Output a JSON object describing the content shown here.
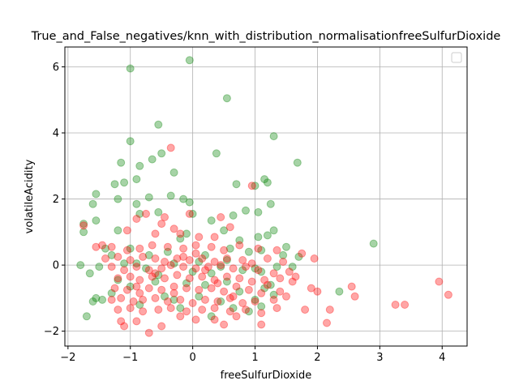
{
  "chart_data": {
    "type": "scatter",
    "title": "True_and_False_negatives/knn_with_distribution_normalisationfreeSulfurDioxide",
    "xlabel": "freeSulfurDioxide",
    "ylabel": "volatileAcidity",
    "xlim": [
      -2.05,
      4.4
    ],
    "ylim": [
      -2.45,
      6.6
    ],
    "xticks": [
      -2,
      -1,
      0,
      1,
      2,
      3,
      4
    ],
    "yticks": [
      -2,
      0,
      2,
      4,
      6
    ],
    "xtick_labels": [
      "−2",
      "−1",
      "0",
      "1",
      "2",
      "3",
      "4"
    ],
    "ytick_labels": [
      "−2",
      "0",
      "2",
      "4",
      "6"
    ],
    "grid": true,
    "legend": "top-right",
    "series": [
      {
        "color": "#008000",
        "alpha": 0.35,
        "points": [
          [
            -0.05,
            6.2
          ],
          [
            -1.0,
            5.95
          ],
          [
            0.55,
            5.05
          ],
          [
            1.3,
            3.9
          ],
          [
            -0.55,
            4.25
          ],
          [
            0.38,
            3.38
          ],
          [
            -0.65,
            3.2
          ],
          [
            -0.5,
            3.38
          ],
          [
            -0.85,
            3.0
          ],
          [
            -1.15,
            3.1
          ],
          [
            -1.1,
            2.5
          ],
          [
            1.68,
            3.1
          ],
          [
            -0.3,
            2.8
          ],
          [
            -0.9,
            2.6
          ],
          [
            -1.0,
            3.75
          ],
          [
            1.2,
            2.5
          ],
          [
            1.15,
            2.6
          ],
          [
            1.0,
            2.4
          ],
          [
            0.7,
            2.45
          ],
          [
            -1.55,
            2.15
          ],
          [
            -1.6,
            1.85
          ],
          [
            -0.35,
            2.1
          ],
          [
            -0.15,
            2.0
          ],
          [
            -0.05,
            1.9
          ],
          [
            -0.7,
            2.05
          ],
          [
            -0.9,
            1.85
          ],
          [
            -1.2,
            2.0
          ],
          [
            1.05,
            1.6
          ],
          [
            -1.25,
            2.45
          ],
          [
            1.25,
            1.85
          ],
          [
            -1.75,
            1.25
          ],
          [
            -1.75,
            1.0
          ],
          [
            -1.55,
            1.35
          ],
          [
            -1.2,
            1.05
          ],
          [
            -0.85,
            1.55
          ],
          [
            -0.55,
            1.6
          ],
          [
            0.0,
            1.55
          ],
          [
            0.3,
            1.35
          ],
          [
            0.85,
            1.65
          ],
          [
            0.65,
            1.5
          ],
          [
            1.3,
            1.05
          ],
          [
            1.2,
            0.9
          ],
          [
            1.05,
            0.85
          ],
          [
            -0.1,
            0.95
          ],
          [
            0.5,
            1.05
          ],
          [
            -1.4,
            0.5
          ],
          [
            -1.3,
            0.3
          ],
          [
            -1.0,
            0.5
          ],
          [
            -0.7,
            0.3
          ],
          [
            -0.4,
            0.4
          ],
          [
            0.2,
            0.3
          ],
          [
            0.6,
            0.5
          ],
          [
            0.9,
            0.4
          ],
          [
            1.1,
            0.45
          ],
          [
            1.5,
            0.55
          ],
          [
            1.7,
            0.25
          ],
          [
            2.9,
            0.65
          ],
          [
            1.45,
            0.3
          ],
          [
            0.75,
            0.75
          ],
          [
            -0.2,
            0.8
          ],
          [
            -1.8,
            0.0
          ],
          [
            -1.65,
            -0.25
          ],
          [
            -1.5,
            -0.05
          ],
          [
            -1.1,
            0.05
          ],
          [
            -0.75,
            -0.1
          ],
          [
            -0.3,
            0.05
          ],
          [
            0.1,
            0.1
          ],
          [
            0.45,
            -0.05
          ],
          [
            0.8,
            -0.15
          ],
          [
            1.1,
            -0.2
          ],
          [
            1.35,
            -0.05
          ],
          [
            1.6,
            -0.05
          ],
          [
            -0.55,
            -0.3
          ],
          [
            0.3,
            -0.25
          ],
          [
            1.0,
            -0.1
          ],
          [
            -1.55,
            -1.0
          ],
          [
            -1.45,
            -1.05
          ],
          [
            -1.6,
            -1.1
          ],
          [
            -1.3,
            -0.85
          ],
          [
            -1.0,
            -0.65
          ],
          [
            -0.6,
            -0.5
          ],
          [
            -0.1,
            -0.55
          ],
          [
            0.2,
            -0.6
          ],
          [
            0.55,
            -0.5
          ],
          [
            0.75,
            -0.8
          ],
          [
            1.0,
            -1.05
          ],
          [
            1.1,
            -1.25
          ],
          [
            1.25,
            -0.6
          ],
          [
            2.35,
            -0.8
          ],
          [
            1.3,
            -0.9
          ],
          [
            -1.7,
            -1.55
          ],
          [
            -0.85,
            -1.2
          ],
          [
            -0.3,
            -1.05
          ],
          [
            0.1,
            -0.95
          ],
          [
            0.45,
            -1.1
          ],
          [
            0.65,
            -1.3
          ],
          [
            0.9,
            -1.4
          ],
          [
            1.15,
            -0.7
          ],
          [
            -0.2,
            -1.3
          ],
          [
            0.3,
            -1.55
          ],
          [
            -1.2,
            -0.45
          ],
          [
            0.55,
            0.15
          ],
          [
            -0.9,
            0.05
          ],
          [
            0.0,
            -0.2
          ],
          [
            -0.45,
            -0.95
          ]
        ]
      },
      {
        "color": "#ff0000",
        "alpha": 0.35,
        "points": [
          [
            -0.35,
            3.55
          ],
          [
            -0.05,
            1.55
          ],
          [
            -0.75,
            1.55
          ],
          [
            -0.9,
            1.4
          ],
          [
            -0.45,
            1.45
          ],
          [
            0.45,
            1.45
          ],
          [
            0.6,
            1.15
          ],
          [
            -0.5,
            1.25
          ],
          [
            -0.3,
            1.1
          ],
          [
            -0.6,
            0.95
          ],
          [
            -0.2,
            0.95
          ],
          [
            0.1,
            0.85
          ],
          [
            0.35,
            0.85
          ],
          [
            0.95,
            2.4
          ],
          [
            -1.05,
            1.05
          ],
          [
            -1.45,
            0.6
          ],
          [
            -1.3,
            0.55
          ],
          [
            -1.05,
            0.45
          ],
          [
            -0.85,
            0.5
          ],
          [
            -0.65,
            0.6
          ],
          [
            -0.4,
            0.55
          ],
          [
            -0.15,
            0.5
          ],
          [
            0.05,
            0.6
          ],
          [
            0.3,
            0.55
          ],
          [
            0.5,
            0.45
          ],
          [
            0.75,
            0.6
          ],
          [
            1.05,
            0.5
          ],
          [
            1.35,
            0.45
          ],
          [
            1.75,
            0.35
          ],
          [
            1.95,
            0.2
          ],
          [
            -1.4,
            0.2
          ],
          [
            -1.2,
            0.25
          ],
          [
            -1.0,
            0.15
          ],
          [
            -0.8,
            0.25
          ],
          [
            -0.6,
            0.2
          ],
          [
            -0.45,
            0.1
          ],
          [
            -0.25,
            0.2
          ],
          [
            -0.05,
            0.15
          ],
          [
            0.15,
            0.2
          ],
          [
            0.35,
            0.1
          ],
          [
            0.55,
            0.2
          ],
          [
            0.8,
            0.15
          ],
          [
            0.95,
            0.05
          ],
          [
            1.2,
            0.2
          ],
          [
            1.45,
            0.1
          ],
          [
            -1.3,
            -0.05
          ],
          [
            -1.1,
            -0.15
          ],
          [
            -0.9,
            -0.05
          ],
          [
            -0.7,
            -0.15
          ],
          [
            -0.5,
            -0.1
          ],
          [
            -0.35,
            0.0
          ],
          [
            -0.15,
            -0.05
          ],
          [
            0.05,
            -0.1
          ],
          [
            0.25,
            -0.05
          ],
          [
            0.45,
            0.0
          ],
          [
            0.65,
            -0.1
          ],
          [
            0.85,
            -0.05
          ],
          [
            1.05,
            -0.15
          ],
          [
            1.3,
            -0.25
          ],
          [
            1.55,
            -0.2
          ],
          [
            -1.2,
            -0.4
          ],
          [
            -1.0,
            -0.35
          ],
          [
            -0.85,
            -0.45
          ],
          [
            -0.65,
            -0.35
          ],
          [
            -0.45,
            -0.4
          ],
          [
            -0.25,
            -0.3
          ],
          [
            -0.05,
            -0.4
          ],
          [
            0.15,
            -0.35
          ],
          [
            0.35,
            -0.45
          ],
          [
            0.55,
            -0.35
          ],
          [
            0.75,
            -0.4
          ],
          [
            0.95,
            -0.5
          ],
          [
            1.15,
            -0.45
          ],
          [
            1.4,
            -0.4
          ],
          [
            1.65,
            -0.35
          ],
          [
            -1.25,
            -0.7
          ],
          [
            -1.05,
            -0.75
          ],
          [
            -0.9,
            -0.65
          ],
          [
            -0.7,
            -0.7
          ],
          [
            -0.5,
            -0.75
          ],
          [
            -0.3,
            -0.65
          ],
          [
            -0.1,
            -0.7
          ],
          [
            0.1,
            -0.75
          ],
          [
            0.3,
            -0.7
          ],
          [
            0.5,
            -0.8
          ],
          [
            0.7,
            -0.65
          ],
          [
            0.9,
            -0.75
          ],
          [
            1.1,
            -0.85
          ],
          [
            1.4,
            -0.8
          ],
          [
            1.9,
            -0.7
          ],
          [
            -1.3,
            -1.05
          ],
          [
            -1.15,
            -1.0
          ],
          [
            -0.95,
            -1.1
          ],
          [
            -0.8,
            -1.05
          ],
          [
            -0.6,
            -1.0
          ],
          [
            -0.4,
            -1.1
          ],
          [
            -0.2,
            -1.05
          ],
          [
            0.0,
            -1.15
          ],
          [
            0.2,
            -1.05
          ],
          [
            0.4,
            -1.1
          ],
          [
            0.6,
            -1.0
          ],
          [
            0.8,
            -1.15
          ],
          [
            1.0,
            -1.1
          ],
          [
            1.3,
            -1.05
          ],
          [
            1.5,
            -0.95
          ],
          [
            -1.2,
            -1.35
          ],
          [
            -1.0,
            -1.3
          ],
          [
            -0.8,
            -1.4
          ],
          [
            -0.55,
            -1.35
          ],
          [
            -0.35,
            -1.3
          ],
          [
            -0.1,
            -1.4
          ],
          [
            0.15,
            -1.35
          ],
          [
            0.35,
            -1.3
          ],
          [
            0.6,
            -1.4
          ],
          [
            0.85,
            -1.35
          ],
          [
            1.1,
            -1.45
          ],
          [
            1.35,
            -1.3
          ],
          [
            1.8,
            -1.35
          ],
          [
            2.2,
            -1.35
          ],
          [
            2.6,
            -0.95
          ],
          [
            -1.15,
            -1.7
          ],
          [
            -1.1,
            -1.85
          ],
          [
            -0.9,
            -1.7
          ],
          [
            -0.7,
            -2.05
          ],
          [
            -0.5,
            -1.85
          ],
          [
            -0.2,
            -1.55
          ],
          [
            0.05,
            -1.65
          ],
          [
            0.35,
            -1.65
          ],
          [
            0.5,
            -1.8
          ],
          [
            0.7,
            -1.55
          ],
          [
            1.1,
            -1.8
          ],
          [
            2.15,
            -1.75
          ],
          [
            3.25,
            -1.2
          ],
          [
            3.4,
            -1.2
          ],
          [
            3.95,
            -0.5
          ],
          [
            4.1,
            -0.9
          ],
          [
            2.55,
            -0.65
          ],
          [
            2.0,
            -0.8
          ],
          [
            1.6,
            -0.5
          ],
          [
            -1.55,
            0.55
          ],
          [
            -1.75,
            1.2
          ],
          [
            -0.15,
            0.25
          ],
          [
            0.2,
            -0.15
          ],
          [
            -0.6,
            -0.25
          ],
          [
            0.4,
            -0.55
          ],
          [
            -0.3,
            -0.85
          ],
          [
            0.65,
            -0.95
          ],
          [
            -0.85,
            -0.85
          ],
          [
            1.2,
            -0.6
          ],
          [
            0.05,
            0.35
          ]
        ]
      }
    ]
  }
}
